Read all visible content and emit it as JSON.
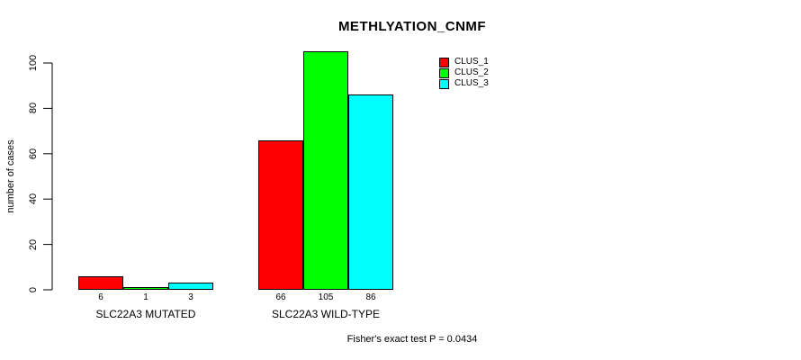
{
  "title": "METHLYATION_CNMF",
  "footnote": "Fisher's exact test P = 0.0434",
  "colors": {
    "clus1": "#FF0000",
    "clus2": "#00FF00",
    "clus3": "#00FFFF",
    "axis": "#000000",
    "background": "#FFFFFF"
  },
  "legend": {
    "position": "top-right",
    "items": [
      {
        "label": "CLUS_1",
        "color": "#FF0000",
        "swatch": "red-square-swatch"
      },
      {
        "label": "CLUS_2",
        "color": "#00FF00",
        "swatch": "green-square-swatch"
      },
      {
        "label": "CLUS_3",
        "color": "#00FFFF",
        "swatch": "cyan-square-swatch"
      }
    ]
  },
  "chart_data": {
    "type": "bar",
    "grouped": true,
    "title": "METHLYATION_CNMF",
    "xlabel": "",
    "ylabel": "number of cases",
    "categories": [
      "SLC22A3 MUTATED",
      "SLC22A3 WILD-TYPE"
    ],
    "series": [
      {
        "name": "CLUS_1",
        "color": "#FF0000",
        "values": [
          6,
          66
        ]
      },
      {
        "name": "CLUS_2",
        "color": "#00FF00",
        "values": [
          1,
          105
        ]
      },
      {
        "name": "CLUS_3",
        "color": "#00FFFF",
        "values": [
          3,
          86
        ]
      }
    ],
    "bar_value_labels": [
      [
        6,
        1,
        3
      ],
      [
        66,
        105,
        86
      ]
    ],
    "yticks": [
      0,
      20,
      40,
      60,
      80,
      100
    ],
    "ylim": [
      0,
      105
    ],
    "grid": false,
    "legend_position": "top-right",
    "annotation": "Fisher's exact test P = 0.0434"
  }
}
